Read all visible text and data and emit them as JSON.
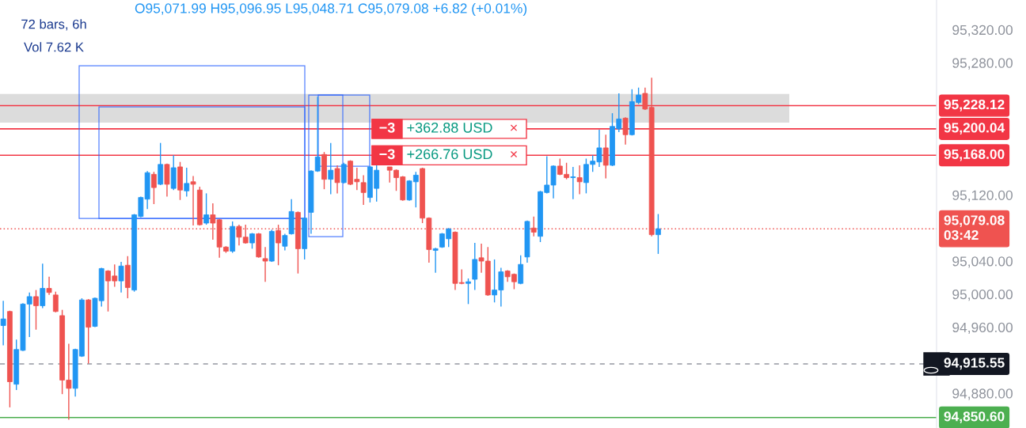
{
  "chart_data": {
    "type": "candlestick",
    "categories": [
      null,
      null,
      null,
      null,
      null,
      null,
      null,
      null,
      null,
      null,
      null,
      null,
      null,
      null,
      null,
      null,
      null,
      null,
      null,
      null,
      null,
      null,
      null,
      null,
      null,
      null,
      null,
      null,
      null,
      null,
      null,
      null,
      null,
      null,
      null,
      null,
      null,
      null,
      null,
      null,
      null,
      null,
      null,
      null,
      null,
      null,
      null,
      null,
      null,
      null,
      null,
      null,
      null,
      null,
      null,
      null,
      null,
      null,
      null,
      null,
      null,
      null,
      null,
      null,
      null,
      null,
      null,
      null,
      null,
      null,
      null,
      null,
      null,
      null,
      null,
      null,
      null,
      null,
      null,
      null,
      null,
      null,
      null,
      null,
      null,
      null,
      null,
      null,
      null,
      null,
      null,
      null,
      null,
      null,
      null,
      null,
      null,
      null,
      null,
      null,
      null,
      null,
      null,
      null,
      null,
      null,
      null,
      null,
      null,
      null,
      null,
      null,
      null,
      null,
      null,
      null,
      null,
      null,
      null,
      null,
      null,
      null,
      null,
      null,
      null,
      null,
      null,
      null,
      null,
      null,
      null,
      null,
      null,
      null,
      null,
      null,
      null,
      null,
      null,
      null,
      null,
      null,
      null
    ],
    "ohlc": [
      [
        94962,
        94992,
        94938,
        94970
      ],
      [
        94979,
        94980,
        94863,
        94894
      ],
      [
        94891,
        94945,
        94884,
        94933
      ],
      [
        94932,
        94989,
        94931,
        94988
      ],
      [
        94988,
        95002,
        94948,
        94997
      ],
      [
        94997,
        95005,
        94957,
        94986
      ],
      [
        94986,
        95037,
        94983,
        95007
      ],
      [
        95007,
        95021,
        94999,
        95002
      ],
      [
        94999,
        95003,
        94978,
        94979
      ],
      [
        94974,
        94981,
        94879,
        94896
      ],
      [
        94896,
        94940,
        94848,
        94886
      ],
      [
        94886,
        94934,
        94876,
        94933
      ],
      [
        94925,
        94995,
        94924,
        94993
      ],
      [
        94993,
        94994,
        94916,
        94960
      ],
      [
        94961,
        94996,
        94960,
        94995
      ],
      [
        94992,
        95032,
        94985,
        95031
      ],
      [
        95028,
        95029,
        94979,
        95016
      ],
      [
        95022,
        95036,
        95009,
        95016
      ],
      [
        95016,
        95039,
        95002,
        95034
      ],
      [
        95035,
        95046,
        94995,
        95008
      ],
      [
        95005,
        95097,
        95003,
        95096
      ],
      [
        95094,
        95118,
        95093,
        95117
      ],
      [
        95115,
        95149,
        95103,
        95147
      ],
      [
        95145,
        95148,
        95109,
        95129
      ],
      [
        95133,
        95183,
        95132,
        95157
      ],
      [
        95157,
        95158,
        95118,
        95133
      ],
      [
        95128,
        95168,
        95126,
        95153
      ],
      [
        95154,
        95160,
        95114,
        95126
      ],
      [
        95125,
        95153,
        95118,
        95134
      ],
      [
        95136,
        95143,
        95083,
        95133
      ],
      [
        95126,
        95130,
        95083,
        95084
      ],
      [
        95086,
        95122,
        95084,
        95096
      ],
      [
        95096,
        95110,
        95066,
        95086
      ],
      [
        95090,
        95091,
        95044,
        95057
      ],
      [
        95057,
        95058,
        95050,
        95052
      ],
      [
        95052,
        95088,
        95050,
        95082
      ],
      [
        95082,
        95084,
        95059,
        95069
      ],
      [
        95069,
        95084,
        95061,
        95062
      ],
      [
        95062,
        95074,
        95055,
        95073
      ],
      [
        95073,
        95074,
        95044,
        95045
      ],
      [
        95043,
        95057,
        95015,
        95040
      ],
      [
        95040,
        95078,
        95039,
        95076
      ],
      [
        95077,
        95084,
        95035,
        95062
      ],
      [
        95058,
        95073,
        95053,
        95071
      ],
      [
        95073,
        95115,
        95072,
        95100
      ],
      [
        95099,
        95100,
        95025,
        95055
      ],
      [
        95055,
        95093,
        95042,
        95092
      ],
      [
        95099,
        95150,
        95073,
        95149
      ],
      [
        95149,
        95239,
        95148,
        95166
      ],
      [
        95169,
        95172,
        95127,
        95139
      ],
      [
        95139,
        95183,
        95121,
        95150
      ],
      [
        95152,
        95156,
        95122,
        95135
      ],
      [
        95135,
        95159,
        95134,
        95157
      ],
      [
        95161,
        95162,
        95132,
        95133
      ],
      [
        95139,
        95153,
        95126,
        95136
      ],
      [
        95135,
        95144,
        95108,
        95123
      ],
      [
        95117,
        95155,
        95111,
        95154
      ],
      [
        95128,
        95156,
        95112,
        95150
      ],
      null,
      [
        95154,
        95154,
        95135,
        95150
      ],
      [
        95150,
        95151,
        95125,
        95141
      ],
      [
        95142,
        95143,
        95113,
        95114
      ],
      [
        95114,
        95138,
        95113,
        95137
      ],
      [
        95136,
        95148,
        95105,
        95144
      ],
      [
        95152,
        95153,
        95086,
        95092
      ],
      [
        95092,
        95093,
        95038,
        95054
      ],
      [
        95053,
        95056,
        95026,
        95055
      ],
      [
        95057,
        95074,
        95056,
        95073
      ],
      [
        95067,
        95080,
        95057,
        95079
      ],
      [
        95075,
        95076,
        95005,
        95013
      ],
      [
        95014,
        95030,
        95012,
        95013
      ],
      [
        95013,
        95019,
        94988,
        95015
      ],
      [
        95018,
        95062,
        95005,
        95042
      ],
      [
        95044,
        95061,
        95026,
        95040
      ],
      [
        95040,
        95057,
        94998,
        94999
      ],
      [
        94999,
        95042,
        94990,
        95005
      ],
      [
        95005,
        95032,
        94985,
        95027
      ],
      [
        95028,
        95029,
        95015,
        95021
      ],
      [
        95024,
        95025,
        95006,
        95015
      ],
      [
        95013,
        95047,
        95012,
        95036
      ],
      [
        95045,
        95089,
        95038,
        95088
      ],
      [
        95080,
        95094,
        95070,
        95075
      ],
      [
        95070,
        95125,
        95063,
        95124
      ],
      [
        95123,
        95167,
        95122,
        95132
      ],
      [
        95132,
        95156,
        95116,
        95155
      ],
      [
        95155,
        95164,
        95144,
        95145
      ],
      [
        95145,
        95159,
        95139,
        95141
      ],
      [
        95141,
        95154,
        95115,
        95142
      ],
      [
        95141,
        95156,
        95121,
        95136
      ],
      [
        95135,
        95164,
        95122,
        95157
      ],
      [
        95157,
        95168,
        95148,
        95161
      ],
      [
        95160,
        95199,
        95154,
        95177
      ],
      [
        95177,
        95193,
        95140,
        95156
      ],
      [
        95156,
        95219,
        95155,
        95203
      ],
      [
        95200,
        95243,
        95196,
        95212
      ],
      [
        95213,
        95214,
        95181,
        95193
      ],
      [
        95193,
        95248,
        95192,
        95233
      ],
      [
        95232,
        95250,
        95230,
        95241
      ],
      [
        95243,
        95250,
        95223,
        95224
      ],
      [
        95226,
        95262,
        95070,
        95072
      ],
      [
        95071.99,
        95096.95,
        95048.71,
        95079.08
      ],
      null,
      null,
      null,
      null,
      null,
      null,
      null,
      null,
      null,
      null,
      null,
      null,
      null,
      null,
      null,
      null,
      null,
      null,
      null,
      null,
      null,
      null,
      null,
      null,
      null,
      null,
      null,
      null,
      null,
      null,
      null,
      null,
      null,
      null,
      null,
      null,
      null,
      null,
      null,
      null,
      null,
      null
    ],
    "colors": [
      "#2196f3",
      "#ef5350",
      "#2196f3",
      "#2196f3",
      "#2196f3",
      "#ef5350",
      "#2196f3",
      "#ef5350",
      "#ef5350",
      "#ef5350",
      "#ef5350",
      "#2196f3",
      "#2196f3",
      "#ef5350",
      "#2196f3",
      "#2196f3",
      "#ef5350",
      "#ef5350",
      "#2196f3",
      "#ef5350",
      "#2196f3",
      "#2196f3",
      "#2196f3",
      "#ef5350",
      "#2196f3",
      "#ef5350",
      "#2196f3",
      "#ef5350",
      "#2196f3",
      "#ef5350",
      "#ef5350",
      "#2196f3",
      "#ef5350",
      "#ef5350",
      "#ef5350",
      "#2196f3",
      "#ef5350",
      "#ef5350",
      "#2196f3",
      "#ef5350",
      "#ef5350",
      "#2196f3",
      "#ef5350",
      "#2196f3",
      "#2196f3",
      "#ef5350",
      "#2196f3",
      "#2196f3",
      "#2196f3",
      "#ef5350",
      "#2196f3",
      "#ef5350",
      "#2196f3",
      "#ef5350",
      "#ef5350",
      "#ef5350",
      "#2196f3",
      "#2196f3",
      null,
      "#ef5350",
      "#ef5350",
      "#ef5350",
      "#2196f3",
      "#2196f3",
      "#ef5350",
      "#ef5350",
      "#2196f3",
      "#2196f3",
      "#2196f3",
      "#ef5350",
      "#ef5350",
      "#2196f3",
      "#2196f3",
      "#ef5350",
      "#ef5350",
      "#2196f3",
      "#2196f3",
      "#ef5350",
      "#ef5350",
      "#2196f3",
      "#2196f3",
      "#ef5350",
      "#2196f3",
      "#2196f3",
      "#2196f3",
      "#ef5350",
      "#ef5350",
      "#2196f3",
      "#ef5350",
      "#2196f3",
      "#2196f3",
      "#2196f3",
      "#ef5350",
      "#2196f3",
      "#2196f3",
      "#ef5350",
      "#2196f3",
      "#2196f3",
      "#ef5350",
      "#ef5350",
      "#2196f3",
      null,
      null,
      null,
      null,
      null,
      null,
      null,
      null,
      null,
      null,
      null,
      null,
      null,
      null,
      null,
      null,
      null,
      null,
      null,
      null,
      null,
      null,
      null,
      null,
      null,
      null,
      null,
      null,
      null,
      null,
      null,
      null,
      null,
      null,
      null,
      null,
      null,
      null,
      null,
      null,
      null,
      null
    ],
    "ylim": [
      94838,
      95356
    ],
    "yticks": [
      {
        "value": 94880,
        "label": "94,880.00"
      },
      {
        "value": 94960,
        "label": "94,960.00"
      },
      {
        "value": 95000,
        "label": "95,000.00"
      },
      {
        "value": 95040,
        "label": "95,040.00"
      },
      {
        "value": 95120,
        "label": "95,120.00"
      },
      {
        "value": 95280,
        "label": "95,280.00"
      },
      {
        "value": 95320,
        "label": "95,320.00"
      }
    ],
    "bands": [
      {
        "axis": "y",
        "from": 95207.5,
        "to": 95242.4,
        "color": "#dcdcdc"
      }
    ],
    "ref_lines": [
      {
        "axis": "y",
        "value": 95228.12,
        "label": "95,228.12",
        "color": "#f23645",
        "line_style": "solid"
      },
      {
        "axis": "y",
        "value": 95200.04,
        "label": "95,200.04",
        "color": "#f23645",
        "line_style": "solid"
      },
      {
        "axis": "y",
        "value": 95168.0,
        "label": "95,168.00",
        "color": "#f23645",
        "line_style": "solid"
      },
      {
        "axis": "y",
        "value": 95079.08,
        "label": "95,079.08\n03:42",
        "color": "#ef5350",
        "line_style": "dotted"
      },
      {
        "axis": "y",
        "value": 94915.55,
        "label": "94,915.55",
        "color": "#9598a1",
        "line_style": "dashed"
      },
      {
        "axis": "y",
        "value": 94850.6,
        "label": "94,850.60",
        "color": "#4caf50",
        "line_style": "solid"
      }
    ],
    "annotations": [
      "O95,071.99 H95,096.95 L95,048.71 C95,079.08 +6.82 (+0.01%)",
      "72 bars, 6h",
      "Vol 7.62 K",
      {
        "text": "−3",
        "y": 95200.04
      },
      {
        "text": "+362.88 USD",
        "y": 95200.04
      },
      {
        "text": "×",
        "y": 95200.04
      },
      {
        "text": "−3",
        "y": 95168.0
      },
      {
        "text": "+266.76 USD",
        "y": 95168.0
      },
      {
        "text": "×",
        "y": 95168.0
      }
    ]
  }
}
